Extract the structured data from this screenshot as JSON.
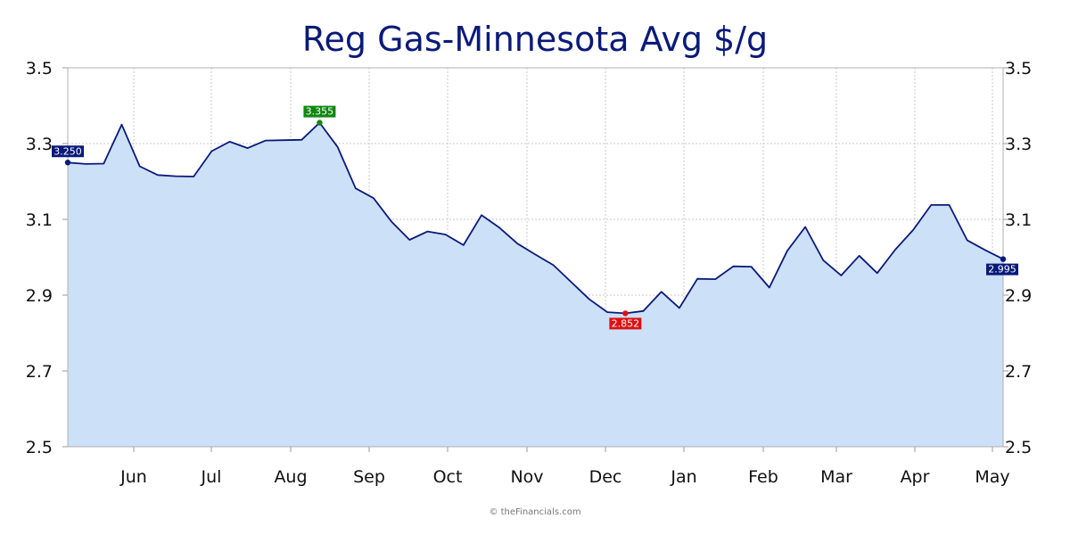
{
  "chart_data": {
    "type": "area",
    "title": "Reg Gas-Minnesota Avg $/g",
    "xlabel": "",
    "ylabel": "",
    "ylim": [
      2.5,
      3.5
    ],
    "y_ticks": [
      "2.5",
      "2.7",
      "2.9",
      "3.1",
      "3.3",
      "3.5"
    ],
    "x_ticks": [
      "Jun",
      "Jul",
      "Aug",
      "Sep",
      "Oct",
      "Nov",
      "Dec",
      "Jan",
      "Feb",
      "Mar",
      "Apr",
      "May"
    ],
    "grid": true,
    "values": [
      3.25,
      3.246,
      3.247,
      3.35,
      3.24,
      3.217,
      3.214,
      3.213,
      3.28,
      3.305,
      3.288,
      3.308,
      3.309,
      3.31,
      3.355,
      3.291,
      3.182,
      3.156,
      3.094,
      3.046,
      3.068,
      3.06,
      3.032,
      3.111,
      3.078,
      3.036,
      3.007,
      2.979,
      2.934,
      2.889,
      2.855,
      2.852,
      2.858,
      2.909,
      2.866,
      2.943,
      2.942,
      2.976,
      2.975,
      2.92,
      3.017,
      3.08,
      2.992,
      2.952,
      3.004,
      2.958,
      3.02,
      3.072,
      3.138,
      3.138,
      3.045,
      3.019,
      2.995
    ],
    "annotations": [
      {
        "label": "3.250",
        "index": 0,
        "kind": "start"
      },
      {
        "label": "3.355",
        "index": 14,
        "kind": "high"
      },
      {
        "label": "2.852",
        "index": 31,
        "kind": "low"
      },
      {
        "label": "2.995",
        "index": 52,
        "kind": "end"
      }
    ],
    "colors": {
      "line": "#0a1a7a",
      "fill": "#cce0f7",
      "high": "#118811",
      "low": "#dd1111",
      "endpoint": "#0a1a7a",
      "title": "#0a1a7a"
    }
  },
  "footer": {
    "credit": "© theFinancials.com"
  }
}
